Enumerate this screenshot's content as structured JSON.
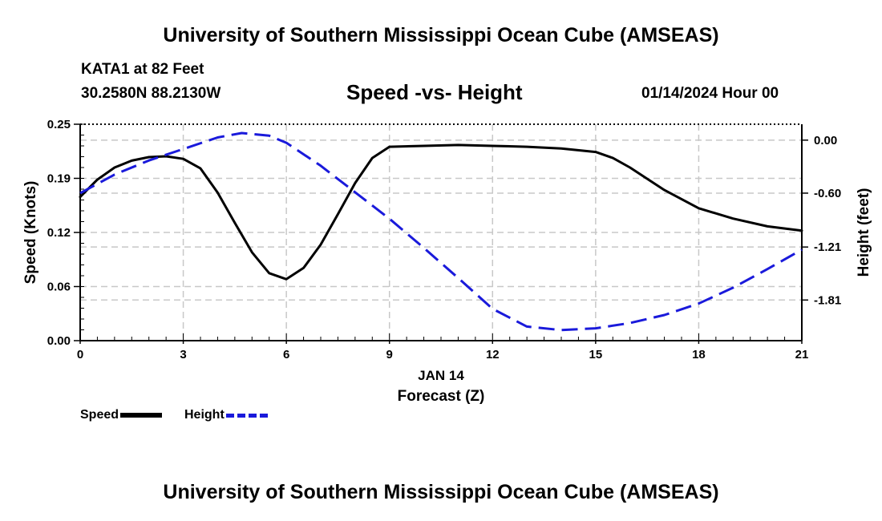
{
  "header": {
    "title": "University of Southern Mississippi Ocean Cube (AMSEAS)",
    "station": "KATA1 at 82 Feet",
    "coords": "30.2580N  88.2130W",
    "subtitle": "Speed -vs- Height",
    "datetime": "01/14/2024 Hour 00"
  },
  "footer": {
    "title": "University of Southern Mississippi Ocean Cube (AMSEAS)"
  },
  "legend": {
    "speed_label": "Speed",
    "height_label": "Height"
  },
  "colors": {
    "speed": "#000000",
    "height": "#1a1adb",
    "grid": "#c8c8c8"
  },
  "chart_data": {
    "type": "line",
    "title": "Speed -vs- Height",
    "xlabel": "Forecast (Z)",
    "xlabel_date": "JAN 14",
    "ylabel": "Speed (Knots)",
    "y2label": "Height (feet)",
    "xlim": [
      0,
      21
    ],
    "ylim": [
      0,
      0.25
    ],
    "y2lim": [
      -2.27,
      0.18
    ],
    "x_ticks": [
      0,
      3,
      6,
      9,
      12,
      15,
      18,
      21
    ],
    "x_tick_labels": [
      "0",
      "3",
      "6",
      "9",
      "12",
      "15",
      "18",
      "21"
    ],
    "y_ticks": [
      0,
      0.0625,
      0.125,
      0.1875,
      0.25
    ],
    "y_tick_labels": [
      "0.00",
      "0.06",
      "0.12",
      "0.19",
      "0.25"
    ],
    "y2_ticks": [
      0.0,
      -0.6,
      -1.21,
      -1.81
    ],
    "y2_tick_labels": [
      "0.00",
      "-0.60",
      "-1.21",
      "-1.81"
    ],
    "grid": true,
    "series": [
      {
        "name": "Speed",
        "axis": "left",
        "style": "solid",
        "x": [
          0,
          0.5,
          1,
          1.5,
          2,
          2.5,
          3,
          3.5,
          4,
          4.5,
          5,
          5.5,
          6,
          6.5,
          7,
          7.5,
          8,
          8.5,
          9,
          10,
          11,
          12,
          13,
          14,
          15,
          15.5,
          16,
          17,
          18,
          19,
          20,
          21
        ],
        "values": [
          0.166,
          0.186,
          0.2,
          0.208,
          0.212,
          0.213,
          0.21,
          0.199,
          0.171,
          0.136,
          0.102,
          0.078,
          0.071,
          0.084,
          0.111,
          0.146,
          0.182,
          0.211,
          0.224,
          0.225,
          0.226,
          0.225,
          0.224,
          0.222,
          0.218,
          0.211,
          0.2,
          0.174,
          0.153,
          0.141,
          0.132,
          0.127
        ]
      },
      {
        "name": "Height",
        "axis": "right",
        "style": "dashed",
        "x": [
          0,
          1,
          2,
          3,
          4,
          4.7,
          5.5,
          6,
          7,
          8,
          9,
          10,
          11,
          12,
          13,
          14,
          15,
          16,
          17,
          18,
          19,
          20,
          21
        ],
        "values": [
          -0.6,
          -0.39,
          -0.23,
          -0.1,
          0.03,
          0.08,
          0.05,
          -0.03,
          -0.29,
          -0.59,
          -0.89,
          -1.22,
          -1.56,
          -1.91,
          -2.11,
          -2.15,
          -2.13,
          -2.07,
          -1.98,
          -1.85,
          -1.67,
          -1.46,
          -1.24
        ]
      }
    ]
  }
}
